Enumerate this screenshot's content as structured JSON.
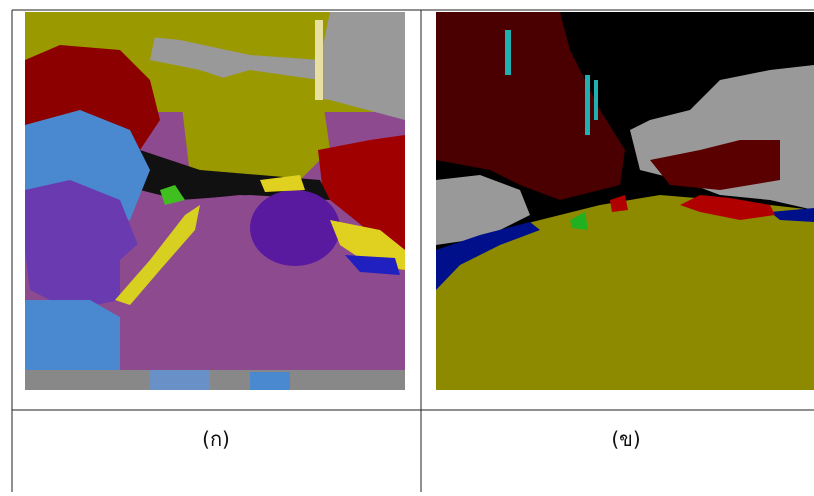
{
  "table": {
    "captions": [
      "(ก)",
      "(ข)"
    ]
  }
}
